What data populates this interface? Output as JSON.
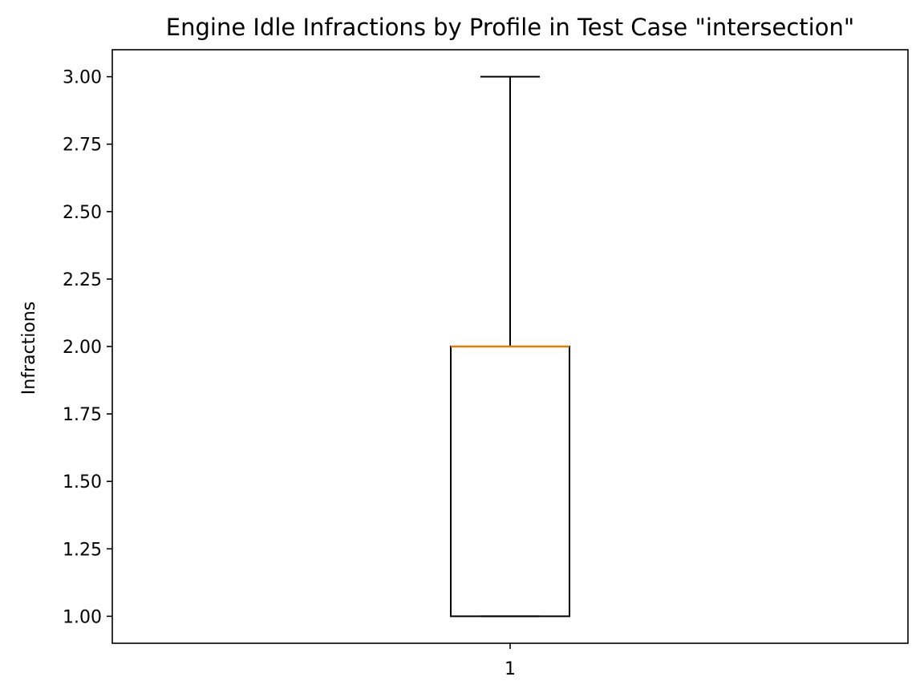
{
  "chart_data": {
    "type": "box",
    "title": "Engine Idle Infractions by Profile in Test Case \"intersection\"",
    "xlabel": "",
    "ylabel": "Infractions",
    "categories": [
      "1"
    ],
    "boxes": [
      {
        "category": "1",
        "whisker_low": 1.0,
        "q1": 1.0,
        "median": 2.0,
        "q3": 2.0,
        "whisker_high": 3.0
      }
    ],
    "ylim": [
      0.9,
      3.1
    ],
    "y_ticks": [
      1.0,
      1.25,
      1.5,
      1.75,
      2.0,
      2.25,
      2.5,
      2.75,
      3.0
    ],
    "y_tick_labels": [
      "1.00",
      "1.25",
      "1.50",
      "1.75",
      "2.00",
      "2.25",
      "2.50",
      "2.75",
      "3.00"
    ],
    "grid": false,
    "legend": "none",
    "colors": {
      "box": "#000000",
      "median": "#e07b10",
      "whisker": "#000000",
      "axes": "#000000"
    }
  }
}
